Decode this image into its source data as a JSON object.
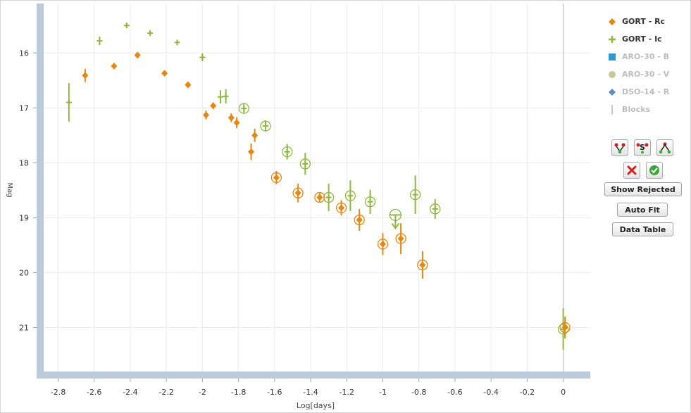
{
  "chart_data": {
    "type": "scatter",
    "xlabel": "Log[days]",
    "ylabel": "Mag",
    "xlim": [
      -2.88,
      0.15
    ],
    "ylim": [
      21.8,
      15.1
    ],
    "y_inverted": true,
    "xticks": [
      -2.8,
      -2.6,
      -2.4,
      -2.2,
      -2,
      -1.8,
      -1.6,
      -1.4,
      -1.2,
      -1,
      -0.8,
      -0.6,
      -0.4,
      -0.2,
      0
    ],
    "xtick_labels": [
      "-2.8",
      "-2.6",
      "-2.4",
      "-2.2",
      "-2",
      "-1.8",
      "-1.6",
      "-1.4",
      "-1.2",
      "-1",
      "-0.8",
      "-0.6",
      "-0.4",
      "-0.2",
      "0"
    ],
    "yticks": [
      16,
      17,
      18,
      19,
      20,
      21
    ],
    "ytick_labels": [
      "16",
      "17",
      "18",
      "19",
      "20",
      "21"
    ],
    "grid": true,
    "legend_position": "right",
    "vertical_marker_x": 0,
    "series": [
      {
        "name": "GORT - Rc",
        "marker": "diamond",
        "color": "#e8870e",
        "visible": true,
        "points": [
          {
            "x": -2.65,
            "y": 16.41,
            "err": 0.12
          },
          {
            "x": -2.49,
            "y": 16.24,
            "err": 0
          },
          {
            "x": -2.36,
            "y": 16.04,
            "err": 0
          },
          {
            "x": -2.21,
            "y": 16.37,
            "err": 0
          },
          {
            "x": -2.08,
            "y": 16.58,
            "err": 0
          },
          {
            "x": -1.98,
            "y": 17.13,
            "err": 0.08
          },
          {
            "x": -1.94,
            "y": 16.96,
            "err": 0.06
          },
          {
            "x": -1.84,
            "y": 17.18,
            "err": 0.08
          },
          {
            "x": -1.81,
            "y": 17.27,
            "err": 0.1
          },
          {
            "x": -1.73,
            "y": 17.8,
            "err": 0.15
          },
          {
            "x": -1.71,
            "y": 17.5,
            "err": 0.12
          },
          {
            "x": -1.59,
            "y": 18.27,
            "err": 0.12,
            "circled": true
          },
          {
            "x": -1.47,
            "y": 18.55,
            "err": 0.17,
            "circled": true
          },
          {
            "x": -1.35,
            "y": 18.63,
            "err": 0.08,
            "circled": true
          },
          {
            "x": -1.23,
            "y": 18.82,
            "err": 0.14,
            "circled": true
          },
          {
            "x": -1.13,
            "y": 19.04,
            "err": 0.2,
            "circled": true
          },
          {
            "x": -1.0,
            "y": 19.48,
            "err": 0.2,
            "circled": true
          },
          {
            "x": -0.9,
            "y": 19.38,
            "err": 0.28,
            "circled": true
          },
          {
            "x": -0.78,
            "y": 19.86,
            "err": 0.25,
            "circled": true
          },
          {
            "x": 0.01,
            "y": 21.0,
            "err": 0.2,
            "circled": true
          }
        ]
      },
      {
        "name": "GORT - Ic",
        "marker": "plus",
        "color": "#8fb83e",
        "visible": true,
        "points": [
          {
            "x": -2.74,
            "y": 16.9,
            "err": 0.35
          },
          {
            "x": -2.57,
            "y": 15.78,
            "err": 0.08
          },
          {
            "x": -2.42,
            "y": 15.5,
            "err": 0.05
          },
          {
            "x": -2.29,
            "y": 15.64,
            "err": 0.04
          },
          {
            "x": -2.14,
            "y": 15.81,
            "err": 0.05
          },
          {
            "x": -2.0,
            "y": 16.08,
            "err": 0.07
          },
          {
            "x": -1.9,
            "y": 16.8,
            "err": 0.12
          },
          {
            "x": -1.87,
            "y": 16.79,
            "err": 0.13
          },
          {
            "x": -1.77,
            "y": 17.01,
            "err": 0.08,
            "circled": true
          },
          {
            "x": -1.65,
            "y": 17.33,
            "err": 0.1,
            "circled": true
          },
          {
            "x": -1.53,
            "y": 17.8,
            "err": 0.14,
            "circled": true
          },
          {
            "x": -1.43,
            "y": 18.02,
            "err": 0.2,
            "circled": true
          },
          {
            "x": -1.3,
            "y": 18.63,
            "err": 0.25,
            "circled": true
          },
          {
            "x": -1.18,
            "y": 18.6,
            "err": 0.28,
            "circled": true
          },
          {
            "x": -1.07,
            "y": 18.71,
            "err": 0.22,
            "circled": true
          },
          {
            "x": -0.82,
            "y": 18.58,
            "err": 0.35,
            "circled": true
          },
          {
            "x": -0.71,
            "y": 18.84,
            "err": 0.18,
            "circled": true
          },
          {
            "x": 0.0,
            "y": 21.03,
            "err": 0.38,
            "circled": true
          }
        ],
        "upper_limits": [
          {
            "x": -0.93,
            "y": 18.95,
            "circled": true
          }
        ]
      },
      {
        "name": "ARO-30 - B",
        "marker": "square",
        "color": "#2b9bd6",
        "visible": false,
        "points": []
      },
      {
        "name": "ARO-30 - V",
        "marker": "circle",
        "color": "#c8c89a",
        "visible": false,
        "points": []
      },
      {
        "name": "DSO-14 - R",
        "marker": "diamond",
        "color": "#5b8fbd",
        "visible": false,
        "points": []
      },
      {
        "name": "Blocks",
        "marker": "bar",
        "color": "#f0b8c0",
        "visible": false,
        "points": []
      }
    ]
  },
  "legend": [
    {
      "label": "GORT - Rc",
      "icon": "diamond",
      "color": "#e8870e",
      "active": true
    },
    {
      "label": "GORT - Ic",
      "icon": "plus",
      "color": "#8fb83e",
      "active": true
    },
    {
      "label": "ARO-30 - B",
      "icon": "square",
      "color": "#2b9bd6",
      "active": false
    },
    {
      "label": "ARO-30 - V",
      "icon": "circle",
      "color": "#c8c89a",
      "active": false
    },
    {
      "label": "DSO-14 - R",
      "icon": "diamond",
      "color": "#5b8fbd",
      "active": false
    },
    {
      "label": "Blocks",
      "icon": "bar",
      "color": "#f0b8c0",
      "active": false
    }
  ],
  "toolbar": {
    "show_rejected": "Show Rejected",
    "auto_fit": "Auto Fit",
    "data_table": "Data Table",
    "icons": [
      "fit-down-icon",
      "fit-s-icon",
      "fit-up-icon",
      "reject-icon",
      "accept-icon"
    ]
  }
}
